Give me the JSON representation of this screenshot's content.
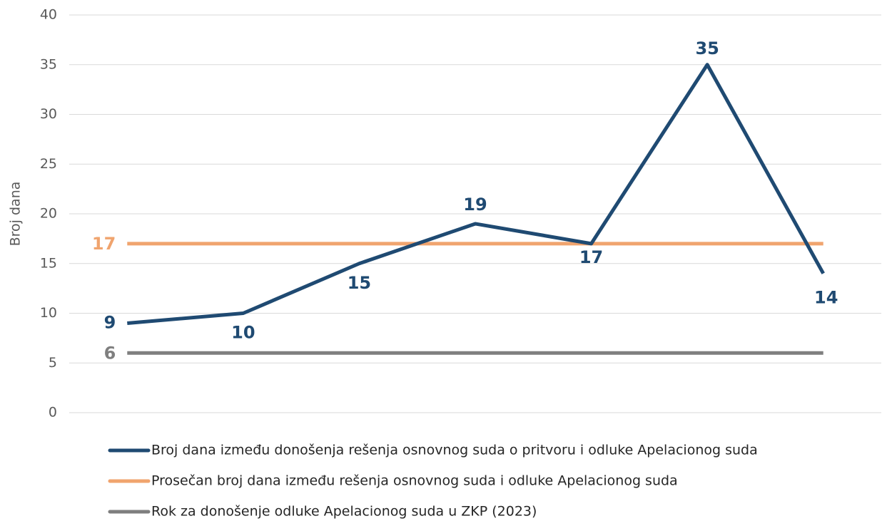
{
  "chart_data": {
    "type": "line",
    "y_label": "Broj dana",
    "categories": [
      null,
      null,
      null,
      null,
      null,
      null,
      null
    ],
    "series": [
      {
        "name": "Broj dana između donošenja rešenja osnovnog suda o pritvoru i odluke Apelacionog suda",
        "color": "#1f4a72",
        "values": [
          9,
          10,
          15,
          19,
          17,
          35,
          14
        ]
      },
      {
        "name": "Prosečan broj dana između rešenja osnovnog suda i odluke Apelacionog suda",
        "color": "#f0a46e",
        "values": [
          17,
          17,
          17,
          17,
          17,
          17,
          17
        ]
      },
      {
        "name": "Rok za donošenje odluke Apelacionog suda u ZKP (2023)",
        "color": "#7f7f7f",
        "values": [
          6,
          6,
          6,
          6,
          6,
          6,
          6
        ]
      }
    ],
    "ylim": [
      0,
      40
    ],
    "yticks": [
      0,
      5,
      10,
      15,
      20,
      25,
      30,
      35,
      40
    ],
    "grid": true
  }
}
